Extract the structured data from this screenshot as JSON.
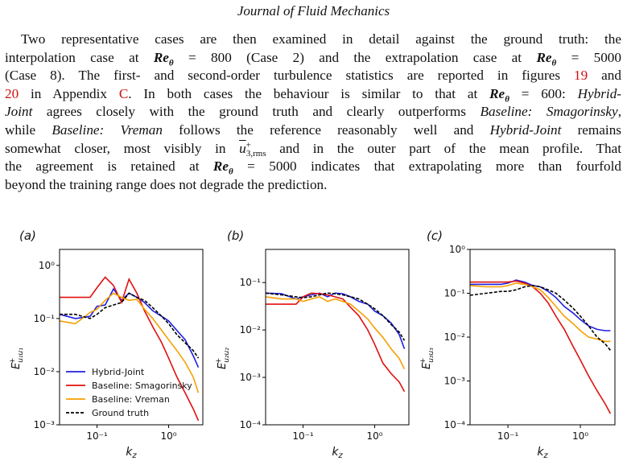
{
  "header": {
    "journal": "Journal of Fluid Mechanics"
  },
  "paragraph": {
    "l1a": "Two representative cases are then examined in detail against the ground truth: the",
    "l2a": "interpolation case at ",
    "l2b": " = 800 (Case 2) and the extrapolation case at ",
    "l2c": " = 5000",
    "l3a": "(Case 8). The first- and second-order turbulence statistics are reported in figures ",
    "l3fig19": "19",
    "l3b": " and",
    "l4fig20": "20",
    "l4a": " in Appendix ",
    "l4appC": "C",
    "l4b": ". In both cases the behaviour is similar to that at ",
    "l4c": " = 600: ",
    "l4hybrid": "Hybrid-",
    "l5joint": "Joint",
    "l5a": " agrees closely with the ground truth and clearly outperforms ",
    "l5smag": "Baseline: Smagorinsky",
    "l5b": ",",
    "l6a": "while ",
    "l6vrem": "Baseline: Vreman",
    "l6b": " follows the reference reasonably well and ",
    "l6hj": "Hybrid-Joint",
    "l6c": " remains",
    "l7a": "somewhat closer, most visibly in ",
    "l7b": " and in the outer part of the mean profile. That",
    "l8a": "the agreement is retained at ",
    "l8b": " = 5000 indicates that extrapolating more than fourfold",
    "l9a": "beyond the training range does not degrade the prediction.",
    "re_symbol": "Re",
    "theta": "θ",
    "u_symbol": "u",
    "u_sup": "+",
    "u_sub": "3,rms"
  },
  "figure": {
    "panel_labels": [
      "(a)",
      "(b)",
      "(c)"
    ],
    "xlabel": "k",
    "xlabel_sub": "z",
    "ylabel_main": "E",
    "ylabel_sup": "+",
    "ylabel_subs": [
      "u₁u₁",
      "u₂u₂",
      "u₃u₃"
    ],
    "x_tick_base": "10",
    "legend": [
      "Hybrid-Joint",
      "Baseline: Smagorinsky",
      "Baseline: Vreman",
      "Ground truth"
    ]
  },
  "chart_data": [
    {
      "type": "line",
      "panel": "(a)",
      "xscale": "log",
      "yscale": "log",
      "xlim": [
        0.03,
        3.0
      ],
      "ylim": [
        0.001,
        2.0
      ],
      "xticks": [
        0.1,
        1
      ],
      "xtick_labels": [
        "10⁻¹",
        "10⁰"
      ],
      "yticks": [
        0.001,
        0.01,
        0.1,
        1
      ],
      "ytick_labels": [
        "10⁻³",
        "10⁻²",
        "10⁻¹",
        "10⁰"
      ],
      "xlabel": "kz",
      "ylabel": "E+u1u1",
      "legend_position": "lower-left",
      "x": [
        0.03,
        0.05,
        0.08,
        0.1,
        0.13,
        0.17,
        0.22,
        0.28,
        0.36,
        0.46,
        0.6,
        0.8,
        1.0,
        1.3,
        1.7,
        2.2,
        2.6
      ],
      "series": [
        {
          "name": "Hybrid-Joint",
          "color": "#1f1fe0",
          "values": [
            0.12,
            0.1,
            0.11,
            0.17,
            0.18,
            0.36,
            0.22,
            0.3,
            0.25,
            0.2,
            0.14,
            0.11,
            0.09,
            0.06,
            0.04,
            0.02,
            0.012
          ]
        },
        {
          "name": "Baseline: Smagorinsky",
          "color": "#e01010",
          "values": [
            0.25,
            0.25,
            0.25,
            0.38,
            0.6,
            0.42,
            0.2,
            0.55,
            0.3,
            0.14,
            0.07,
            0.035,
            0.018,
            0.008,
            0.004,
            0.002,
            0.0012
          ]
        },
        {
          "name": "Baseline: Vreman",
          "color": "#f5a000",
          "values": [
            0.09,
            0.08,
            0.13,
            0.15,
            0.22,
            0.3,
            0.25,
            0.22,
            0.23,
            0.15,
            0.1,
            0.06,
            0.04,
            0.025,
            0.015,
            0.008,
            0.004
          ]
        },
        {
          "name": "Ground truth",
          "color": "#000000",
          "values": [
            0.12,
            0.12,
            0.1,
            0.12,
            0.16,
            0.18,
            0.2,
            0.3,
            0.25,
            0.22,
            0.16,
            0.11,
            0.08,
            0.05,
            0.035,
            0.025,
            0.018
          ]
        }
      ]
    },
    {
      "type": "line",
      "panel": "(b)",
      "xscale": "log",
      "yscale": "log",
      "xlim": [
        0.03,
        3.0
      ],
      "ylim": [
        0.0001,
        0.5
      ],
      "xticks": [
        0.1,
        1
      ],
      "xtick_labels": [
        "10⁻¹",
        "10⁰"
      ],
      "yticks": [
        0.0001,
        0.001,
        0.01,
        0.1
      ],
      "ytick_labels": [
        "10⁻⁴",
        "10⁻³",
        "10⁻²",
        "10⁻¹"
      ],
      "xlabel": "kz",
      "ylabel": "E+u2u2",
      "x": [
        0.03,
        0.05,
        0.08,
        0.1,
        0.13,
        0.17,
        0.22,
        0.28,
        0.36,
        0.46,
        0.6,
        0.8,
        1.0,
        1.3,
        1.7,
        2.2,
        2.6
      ],
      "series": [
        {
          "name": "Hybrid-Joint",
          "color": "#1f1fe0",
          "values": [
            0.06,
            0.058,
            0.045,
            0.05,
            0.055,
            0.06,
            0.05,
            0.06,
            0.058,
            0.05,
            0.04,
            0.035,
            0.025,
            0.02,
            0.014,
            0.008,
            0.004
          ]
        },
        {
          "name": "Baseline: Smagorinsky",
          "color": "#e01010",
          "values": [
            0.035,
            0.035,
            0.035,
            0.05,
            0.06,
            0.058,
            0.055,
            0.05,
            0.045,
            0.03,
            0.02,
            0.01,
            0.005,
            0.002,
            0.0012,
            0.0008,
            0.0005
          ]
        },
        {
          "name": "Baseline: Vreman",
          "color": "#f5a000",
          "values": [
            0.05,
            0.045,
            0.045,
            0.04,
            0.045,
            0.05,
            0.04,
            0.045,
            0.04,
            0.035,
            0.025,
            0.017,
            0.011,
            0.007,
            0.004,
            0.0025,
            0.0015
          ]
        },
        {
          "name": "Ground truth",
          "color": "#000000",
          "values": [
            0.06,
            0.055,
            0.05,
            0.048,
            0.05,
            0.055,
            0.06,
            0.058,
            0.055,
            0.05,
            0.045,
            0.035,
            0.028,
            0.02,
            0.013,
            0.009,
            0.006
          ]
        }
      ]
    },
    {
      "type": "line",
      "panel": "(c)",
      "xscale": "log",
      "yscale": "log",
      "xlim": [
        0.03,
        3.0
      ],
      "ylim": [
        0.0001,
        1.0
      ],
      "xticks": [
        0.1,
        1
      ],
      "xtick_labels": [
        "10⁻¹",
        "10⁰"
      ],
      "yticks": [
        0.0001,
        0.001,
        0.01,
        0.1,
        1
      ],
      "ytick_labels": [
        "10⁻⁴",
        "10⁻³",
        "10⁻²",
        "10⁻¹",
        "10⁰"
      ],
      "xlabel": "kz",
      "ylabel": "E+u3u3",
      "x": [
        0.03,
        0.05,
        0.08,
        0.1,
        0.13,
        0.17,
        0.22,
        0.28,
        0.36,
        0.46,
        0.6,
        0.8,
        1.0,
        1.3,
        1.7,
        2.2,
        2.6
      ],
      "series": [
        {
          "name": "Hybrid-Joint",
          "color": "#1f1fe0",
          "values": [
            0.16,
            0.16,
            0.16,
            0.17,
            0.2,
            0.18,
            0.15,
            0.14,
            0.11,
            0.08,
            0.05,
            0.035,
            0.025,
            0.018,
            0.015,
            0.014,
            0.014
          ]
        },
        {
          "name": "Baseline: Smagorinsky",
          "color": "#e01010",
          "values": [
            0.18,
            0.18,
            0.18,
            0.18,
            0.19,
            0.17,
            0.14,
            0.1,
            0.06,
            0.03,
            0.015,
            0.006,
            0.003,
            0.0013,
            0.0006,
            0.0003,
            0.00018
          ]
        },
        {
          "name": "Baseline: Vreman",
          "color": "#f5a000",
          "values": [
            0.15,
            0.14,
            0.14,
            0.15,
            0.17,
            0.16,
            0.14,
            0.12,
            0.08,
            0.05,
            0.03,
            0.02,
            0.014,
            0.01,
            0.009,
            0.008,
            0.008
          ]
        },
        {
          "name": "Ground truth",
          "color": "#000000",
          "values": [
            0.09,
            0.1,
            0.11,
            0.11,
            0.12,
            0.14,
            0.15,
            0.14,
            0.12,
            0.1,
            0.07,
            0.045,
            0.03,
            0.018,
            0.01,
            0.007,
            0.005
          ]
        }
      ]
    }
  ]
}
